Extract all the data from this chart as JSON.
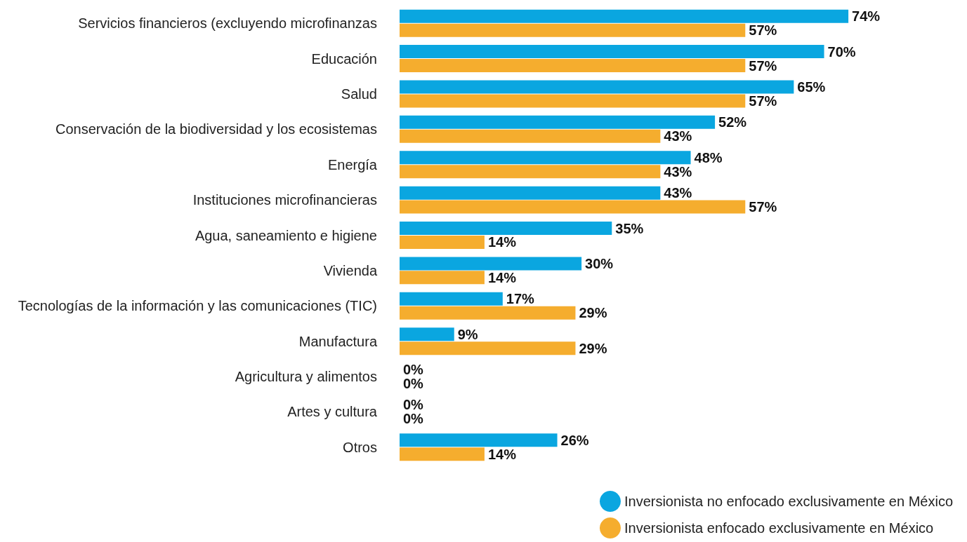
{
  "chart_data": {
    "type": "bar",
    "orientation": "horizontal",
    "legend": "bottom right",
    "categories": [
      "Servicios financieros (excluyendo microfinanzas",
      "Educación",
      "Salud",
      "Conservación de la biodiversidad y los ecosistemas",
      "Energía",
      "Instituciones microfinancieras",
      "Agua, saneamiento e higiene",
      "Vivienda",
      "Tecnologías de la información y las comunicaciones (TIC)",
      "Manufactura",
      "Agricultura y alimentos",
      "Artes y cultura",
      "Otros"
    ],
    "series": [
      {
        "name": "Inversionista no enfocado exclusivamente en México",
        "color": "#0aa6e0",
        "values": [
          74,
          70,
          65,
          52,
          48,
          43,
          35,
          30,
          17,
          9,
          0,
          0,
          26
        ],
        "value_labels": [
          "74%",
          "70%",
          "65%",
          "52%",
          "48%",
          "43%",
          "35%",
          "30%",
          "17%",
          "9%",
          "0%",
          "0%",
          "26%"
        ]
      },
      {
        "name": "Inversionista enfocado exclusivamente en México",
        "color": "#f5ad2e",
        "values": [
          57,
          57,
          57,
          43,
          43,
          57,
          14,
          14,
          29,
          29,
          0,
          0,
          14
        ],
        "value_labels": [
          "57%",
          "57%",
          "57%",
          "43%",
          "43%",
          "57%",
          "14%",
          "14%",
          "29%",
          "29%",
          "0%",
          "0%",
          "14%"
        ]
      }
    ]
  }
}
